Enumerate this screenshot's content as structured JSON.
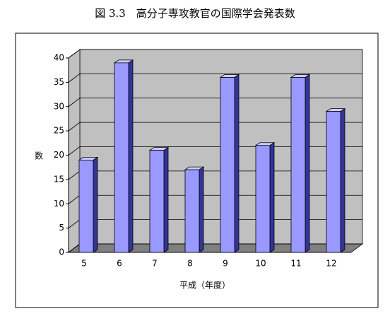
{
  "chart_data": {
    "type": "bar3d",
    "title": "図 3.3　高分子専攻教官の国際学会発表数",
    "y_label": "数",
    "x_label": "平成（年度）",
    "categories": [
      "5",
      "6",
      "7",
      "8",
      "9",
      "10",
      "11",
      "12"
    ],
    "values": [
      19,
      39,
      21,
      17,
      36,
      22,
      36,
      29
    ],
    "color": "#9999ff",
    "ylim": [
      0,
      40
    ],
    "yticks": [
      0,
      5,
      10,
      15,
      20,
      25,
      30,
      35,
      40
    ],
    "grid": true
  }
}
